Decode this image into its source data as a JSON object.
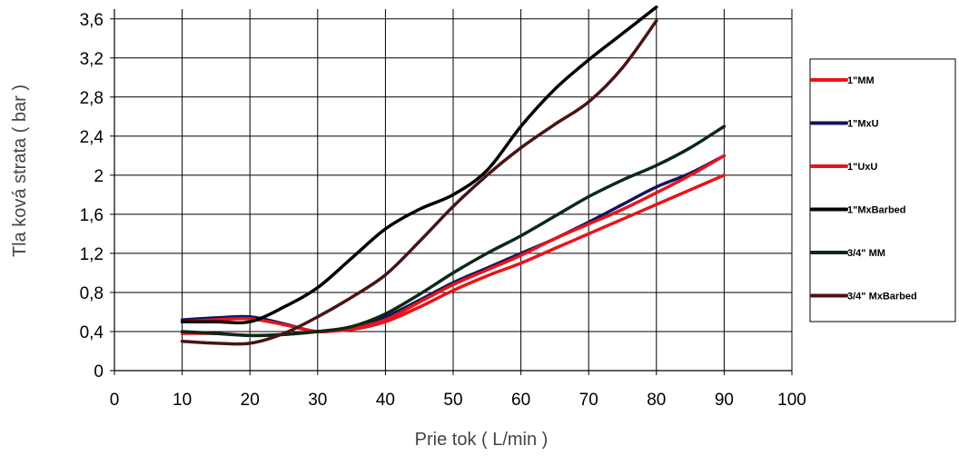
{
  "chart_data": {
    "type": "line",
    "xlabel": "Prie tok ( L/min )",
    "ylabel": "Tla ková strata ( bar )",
    "xlim": [
      0,
      100
    ],
    "ylim": [
      0,
      3.7
    ],
    "x_ticks": [
      0,
      10,
      20,
      30,
      40,
      50,
      60,
      70,
      80,
      90,
      100
    ],
    "y_ticks": [
      0,
      0.4,
      0.8,
      1.2,
      1.6,
      2,
      2.4,
      2.8,
      3.2,
      3.6
    ],
    "x_tick_labels": [
      "0",
      "10",
      "20",
      "30",
      "40",
      "50",
      "60",
      "70",
      "80",
      "90",
      "100"
    ],
    "y_tick_labels": [
      "0",
      "0,4",
      "0,8",
      "1,2",
      "1,6",
      "2",
      "2,4",
      "2,8",
      "3,2",
      "3,6"
    ],
    "grid": true,
    "legend_position": "right",
    "series": [
      {
        "name": "1\"MM",
        "color": "#e8141c",
        "points": [
          [
            10,
            0.38
          ],
          [
            15,
            0.38
          ],
          [
            20,
            0.36
          ],
          [
            25,
            0.37
          ],
          [
            30,
            0.4
          ],
          [
            35,
            0.42
          ],
          [
            40,
            0.5
          ],
          [
            45,
            0.65
          ],
          [
            50,
            0.82
          ],
          [
            55,
            0.97
          ],
          [
            60,
            1.1
          ],
          [
            65,
            1.25
          ],
          [
            70,
            1.4
          ],
          [
            75,
            1.55
          ],
          [
            80,
            1.7
          ],
          [
            85,
            1.85
          ],
          [
            90,
            2.0
          ]
        ]
      },
      {
        "name": "1\"MxU",
        "color": "#14145a",
        "points": [
          [
            10,
            0.52
          ],
          [
            15,
            0.54
          ],
          [
            20,
            0.55
          ],
          [
            25,
            0.48
          ],
          [
            30,
            0.4
          ],
          [
            35,
            0.44
          ],
          [
            40,
            0.55
          ],
          [
            45,
            0.72
          ],
          [
            50,
            0.9
          ],
          [
            55,
            1.05
          ],
          [
            60,
            1.2
          ],
          [
            65,
            1.35
          ],
          [
            70,
            1.52
          ],
          [
            75,
            1.7
          ],
          [
            80,
            1.88
          ],
          [
            85,
            2.02
          ],
          [
            90,
            2.2
          ]
        ]
      },
      {
        "name": "1\"UxU",
        "color": "#e8141c",
        "points": [
          [
            10,
            0.5
          ],
          [
            15,
            0.52
          ],
          [
            20,
            0.53
          ],
          [
            25,
            0.47
          ],
          [
            30,
            0.4
          ],
          [
            35,
            0.43
          ],
          [
            40,
            0.52
          ],
          [
            45,
            0.7
          ],
          [
            50,
            0.88
          ],
          [
            55,
            1.03
          ],
          [
            60,
            1.18
          ],
          [
            65,
            1.35
          ],
          [
            70,
            1.5
          ],
          [
            75,
            1.65
          ],
          [
            80,
            1.82
          ],
          [
            85,
            2.0
          ],
          [
            90,
            2.2
          ]
        ]
      },
      {
        "name": "1\"MxBarbed",
        "color": "#000000",
        "points": [
          [
            10,
            0.5
          ],
          [
            15,
            0.5
          ],
          [
            20,
            0.5
          ],
          [
            25,
            0.65
          ],
          [
            30,
            0.85
          ],
          [
            35,
            1.15
          ],
          [
            40,
            1.45
          ],
          [
            45,
            1.65
          ],
          [
            50,
            1.8
          ],
          [
            55,
            2.05
          ],
          [
            60,
            2.5
          ],
          [
            65,
            2.88
          ],
          [
            70,
            3.18
          ],
          [
            75,
            3.45
          ],
          [
            80,
            3.72
          ]
        ]
      },
      {
        "name": "3/4\" MM",
        "color": "#0c2818",
        "points": [
          [
            10,
            0.4
          ],
          [
            15,
            0.38
          ],
          [
            20,
            0.36
          ],
          [
            25,
            0.37
          ],
          [
            30,
            0.4
          ],
          [
            35,
            0.45
          ],
          [
            40,
            0.58
          ],
          [
            45,
            0.78
          ],
          [
            50,
            1.0
          ],
          [
            55,
            1.2
          ],
          [
            60,
            1.38
          ],
          [
            65,
            1.58
          ],
          [
            70,
            1.78
          ],
          [
            75,
            1.95
          ],
          [
            80,
            2.1
          ],
          [
            85,
            2.28
          ],
          [
            90,
            2.5
          ]
        ]
      },
      {
        "name": "3/4\" MxBarbed",
        "color": "#4a1414",
        "points": [
          [
            10,
            0.3
          ],
          [
            15,
            0.28
          ],
          [
            20,
            0.28
          ],
          [
            25,
            0.38
          ],
          [
            30,
            0.55
          ],
          [
            35,
            0.75
          ],
          [
            40,
            0.98
          ],
          [
            45,
            1.32
          ],
          [
            50,
            1.68
          ],
          [
            55,
            2.0
          ],
          [
            60,
            2.28
          ],
          [
            65,
            2.52
          ],
          [
            70,
            2.75
          ],
          [
            75,
            3.1
          ],
          [
            80,
            3.58
          ]
        ]
      }
    ]
  }
}
